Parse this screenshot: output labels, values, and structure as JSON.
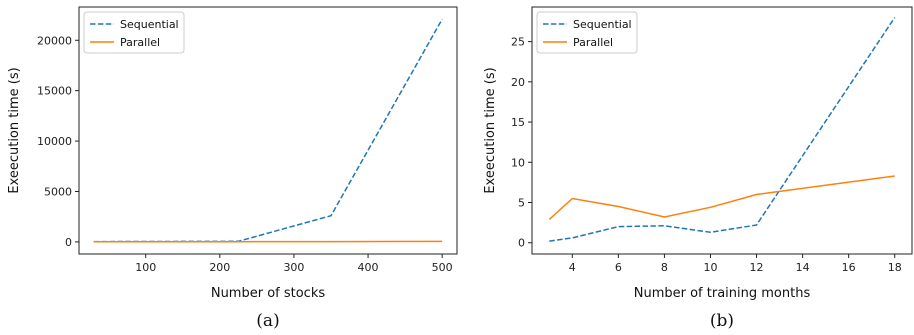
{
  "colors": {
    "sequential": "#1f77b4",
    "parallel": "#ff7f0e"
  },
  "chart_data": [
    {
      "type": "line",
      "caption": "(a)",
      "xlabel": "Number of stocks",
      "ylabel": "Exeecution time (s)",
      "xlim": [
        10,
        520
      ],
      "ylim": [
        -1200,
        23300
      ],
      "xticks": [
        100,
        200,
        300,
        400,
        500
      ],
      "yticks": [
        0,
        5000,
        10000,
        15000,
        20000
      ],
      "legend": "top-left",
      "grid": false,
      "series": [
        {
          "name": "Sequential",
          "style": "dashed",
          "color_key": "sequential",
          "x": [
            30,
            100,
            225,
            350,
            500
          ],
          "y": [
            30,
            40,
            60,
            2600,
            22100
          ]
        },
        {
          "name": "Parallel",
          "style": "solid",
          "color_key": "parallel",
          "x": [
            30,
            100,
            225,
            350,
            500
          ],
          "y": [
            10,
            15,
            20,
            30,
            50
          ]
        }
      ]
    },
    {
      "type": "line",
      "caption": "(b)",
      "xlabel": "Number of training months",
      "ylabel": "Exeecution time (s)",
      "xlim": [
        2.25,
        18.75
      ],
      "ylim": [
        -1.4,
        29.3
      ],
      "xticks": [
        4,
        6,
        8,
        10,
        12,
        14,
        16,
        18
      ],
      "yticks": [
        0,
        5,
        10,
        15,
        20,
        25
      ],
      "legend": "top-left",
      "grid": false,
      "series": [
        {
          "name": "Sequential",
          "style": "dashed",
          "color_key": "sequential",
          "x": [
            3,
            4,
            6,
            8,
            10,
            12,
            18
          ],
          "y": [
            0.2,
            0.6,
            2.0,
            2.1,
            1.3,
            2.2,
            28.0
          ]
        },
        {
          "name": "Parallel",
          "style": "solid",
          "color_key": "parallel",
          "x": [
            3,
            4,
            6,
            8,
            10,
            12,
            18
          ],
          "y": [
            2.9,
            5.5,
            4.5,
            3.2,
            4.4,
            6.0,
            8.3
          ]
        }
      ]
    }
  ]
}
